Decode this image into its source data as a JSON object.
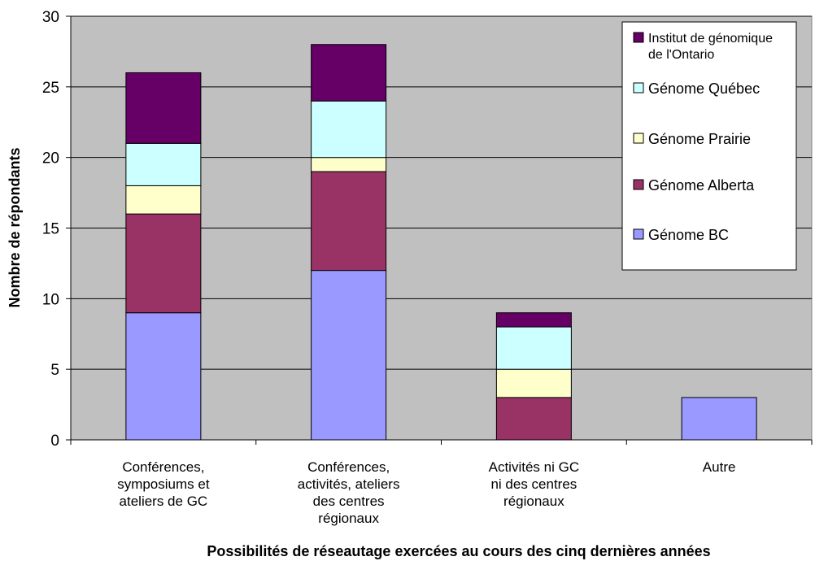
{
  "chart_data": {
    "type": "bar",
    "stacked": true,
    "categories": [
      [
        "Conférences,",
        "symposiums et",
        "ateliers de GC"
      ],
      [
        "Conférences,",
        "activités, ateliers",
        "des centres",
        "régionaux"
      ],
      [
        "Activités ni GC",
        "ni des centres",
        "régionaux"
      ],
      [
        "Autre"
      ]
    ],
    "series": [
      {
        "name": "Génome BC",
        "color": "#9999FF",
        "values": [
          9,
          12,
          0,
          3
        ]
      },
      {
        "name": "Génome Alberta",
        "color": "#993366",
        "values": [
          7,
          7,
          3,
          0
        ]
      },
      {
        "name": "Génome Prairie",
        "color": "#FFFFCC",
        "values": [
          2,
          1,
          2,
          0
        ]
      },
      {
        "name": "Génome Québec",
        "color": "#CCFFFF",
        "values": [
          3,
          4,
          3,
          0
        ]
      },
      {
        "name": "Institut de génomique de l'Ontario",
        "legend_lines": [
          "Institut de génomique",
          "de l'Ontario"
        ],
        "color": "#660066",
        "values": [
          5,
          4,
          1,
          0
        ]
      }
    ],
    "xlabel": "Possibilités de réseautage exercées au cours des cinq dernières années",
    "ylabel": "Nombre de répondants",
    "ylim": [
      0,
      30
    ],
    "yticks": [
      0,
      5,
      10,
      15,
      20,
      25,
      30
    ],
    "grid": true,
    "plot_background": "#C0C0C0",
    "legend_position": "top-right",
    "legend_order": [
      "Institut de génomique de l'Ontario",
      "Génome Québec",
      "Génome Prairie",
      "Génome Alberta",
      "Génome BC"
    ]
  }
}
